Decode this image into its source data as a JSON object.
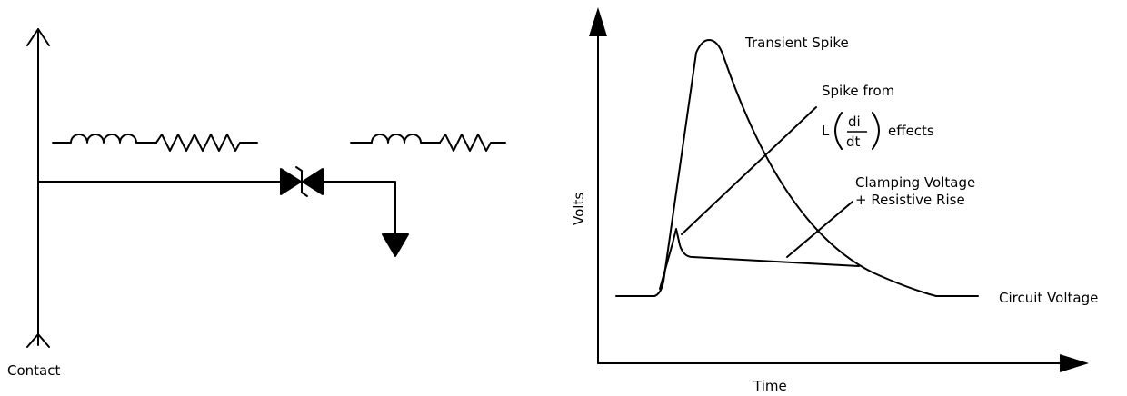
{
  "circuit": {
    "contact_label": "Contact"
  },
  "graph": {
    "y_axis_label": "Volts",
    "x_axis_label": "Time",
    "annotations": {
      "transient_spike": "Transient Spike",
      "spike_from": "Spike from",
      "l_prefix": "L",
      "di": "di",
      "dt": "dt",
      "effects": "effects",
      "clamping_line1": "Clamping Voltage",
      "clamping_line2": "+ Resistive Rise",
      "circuit_voltage": "Circuit Voltage"
    }
  }
}
